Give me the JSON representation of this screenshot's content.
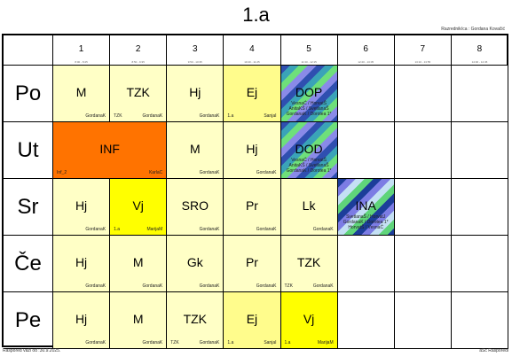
{
  "title": "1.a",
  "teacher": "Razrednik/ca :  Gordana Kovačić",
  "footer_left": "Raspored važi od :30.9.2025.",
  "footer_right": "aSc Rasporedi",
  "periods": [
    {
      "num": "1",
      "time": "8:00 - 8:45"
    },
    {
      "num": "2",
      "time": "8:50 - 9:35"
    },
    {
      "num": "3",
      "time": "9:50 - 10:35"
    },
    {
      "num": "4",
      "time": "10:40 - 11:25"
    },
    {
      "num": "5",
      "time": "11:30 - 12:15"
    },
    {
      "num": "6",
      "time": "12:20 - 13:05"
    },
    {
      "num": "7",
      "time": "13:10 - 13:55"
    },
    {
      "num": "8",
      "time": "14:00 - 14:45"
    }
  ],
  "colors": {
    "cream": "#ffffc6",
    "light_yellow": "#fffc8c",
    "yellow": "#ffff00",
    "orange": "#ff7300",
    "empty": "#ffffff"
  },
  "days": [
    {
      "name": "Po",
      "lessons": [
        {
          "col": 0,
          "span": 1,
          "subject": "M",
          "left": "",
          "right": "GordanaK",
          "color": "cream"
        },
        {
          "col": 1,
          "span": 1,
          "subject": "TZK",
          "left": "TZK",
          "right": "GordanaK",
          "color": "cream"
        },
        {
          "col": 2,
          "span": 1,
          "subject": "Hj",
          "left": "",
          "right": "GordanaK",
          "color": "cream"
        },
        {
          "col": 3,
          "span": 1,
          "subject": "Ej",
          "left": "1.a",
          "right": "SanjaI",
          "color": "light_yellow"
        },
        {
          "col": 4,
          "span": 1,
          "subject": "DOP",
          "stripe": "a",
          "lines": [
            "VesnaĆ / HorvatŠ",
            "AnitaKŠ / SvetlanaŠ",
            "GordanaK / Dorotea 1*"
          ],
          "color": "stripe"
        }
      ]
    },
    {
      "name": "Ut",
      "lessons": [
        {
          "col": 0,
          "span": 2,
          "subject": "INF",
          "left": "Inf_2",
          "right": "KarlaC",
          "color": "orange"
        },
        {
          "col": 2,
          "span": 1,
          "subject": "M",
          "left": "",
          "right": "GordanaK",
          "color": "cream"
        },
        {
          "col": 3,
          "span": 1,
          "subject": "Hj",
          "left": "",
          "right": "GordanaK",
          "color": "cream"
        },
        {
          "col": 4,
          "span": 1,
          "subject": "DOD",
          "stripe": "a",
          "lines": [
            "VesnaĆ / HorvatŠ",
            "AnitaKŠ / SvetlanaŠ",
            "GordanaK / Dorotea 1*"
          ],
          "color": "stripe"
        }
      ]
    },
    {
      "name": "Sr",
      "lessons": [
        {
          "col": 0,
          "span": 1,
          "subject": "Hj",
          "left": "",
          "right": "GordanaK",
          "color": "cream"
        },
        {
          "col": 1,
          "span": 1,
          "subject": "Vj",
          "left": "1.a",
          "right": "MarijaM",
          "color": "yellow"
        },
        {
          "col": 2,
          "span": 1,
          "subject": "SRO",
          "left": "",
          "right": "GordanaK",
          "color": "cream"
        },
        {
          "col": 3,
          "span": 1,
          "subject": "Pr",
          "left": "",
          "right": "GordanaK",
          "color": "cream"
        },
        {
          "col": 4,
          "span": 1,
          "subject": "Lk",
          "left": "",
          "right": "GordanaK",
          "color": "cream"
        },
        {
          "col": 5,
          "span": 1,
          "subject": "INA",
          "stripe": "b",
          "lines": [
            "SvetlanaŠ / HorvatJ",
            "GordanaK / Dorotea 1*",
            "HorvatŠ / VesnaĆ"
          ],
          "color": "stripe"
        }
      ]
    },
    {
      "name": "Če",
      "lessons": [
        {
          "col": 0,
          "span": 1,
          "subject": "Hj",
          "left": "",
          "right": "GordanaK",
          "color": "cream"
        },
        {
          "col": 1,
          "span": 1,
          "subject": "M",
          "left": "",
          "right": "GordanaK",
          "color": "cream"
        },
        {
          "col": 2,
          "span": 1,
          "subject": "Gk",
          "left": "",
          "right": "GordanaK",
          "color": "cream"
        },
        {
          "col": 3,
          "span": 1,
          "subject": "Pr",
          "left": "",
          "right": "GordanaK",
          "color": "cream"
        },
        {
          "col": 4,
          "span": 1,
          "subject": "TZK",
          "left": "TZK",
          "right": "GordanaK",
          "color": "cream"
        }
      ]
    },
    {
      "name": "Pe",
      "lessons": [
        {
          "col": 0,
          "span": 1,
          "subject": "Hj",
          "left": "",
          "right": "GordanaK",
          "color": "cream"
        },
        {
          "col": 1,
          "span": 1,
          "subject": "M",
          "left": "",
          "right": "GordanaK",
          "color": "cream"
        },
        {
          "col": 2,
          "span": 1,
          "subject": "TZK",
          "left": "TZK",
          "right": "GordanaK",
          "color": "cream"
        },
        {
          "col": 3,
          "span": 1,
          "subject": "Ej",
          "left": "1.a",
          "right": "SanjaI",
          "color": "light_yellow"
        },
        {
          "col": 4,
          "span": 1,
          "subject": "Vj",
          "left": "1.a",
          "right": "MarijaM",
          "color": "yellow"
        }
      ]
    }
  ]
}
